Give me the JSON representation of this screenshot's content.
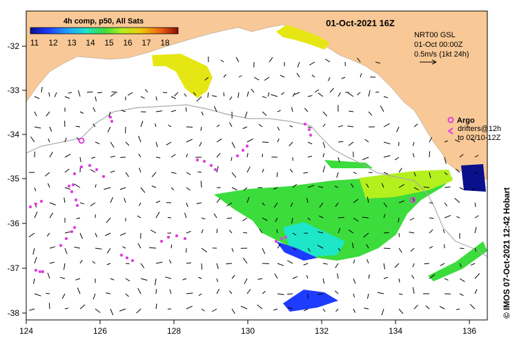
{
  "title": "01-Oct-2021 16Z",
  "colorbar": {
    "title": "4h comp, p50, All Sats",
    "labels": [
      "11",
      "12",
      "13",
      "14",
      "15",
      "16",
      "17",
      "18"
    ],
    "colors": [
      "#0a0f8c",
      "#1e3cff",
      "#1ea0ff",
      "#1ee6c8",
      "#3cdc3c",
      "#b4f01e",
      "#f0c80a",
      "#f06414",
      "#8c0a0a"
    ]
  },
  "legend": {
    "line1": "NRT00 GSL",
    "line2": "01-Oct 00:00Z",
    "line3": "0.5m/s (1kt 24h)"
  },
  "argo": {
    "label": "Argo",
    "drifters_line1": "drifters@12h",
    "drifters_line2": "to 02/10-12Z",
    "color": "#e040e0"
  },
  "credit": "© IMOS 07-Oct-2021 12:42 Hobart",
  "axes": {
    "x_ticks": [
      "124",
      "126",
      "128",
      "130",
      "132",
      "134",
      "136"
    ],
    "y_ticks": [
      "-32",
      "-33",
      "-34",
      "-35",
      "-36",
      "-37",
      "-38"
    ]
  },
  "colors": {
    "land": "#f8c896",
    "ocean": "#ffffff",
    "frame": "#000000"
  }
}
